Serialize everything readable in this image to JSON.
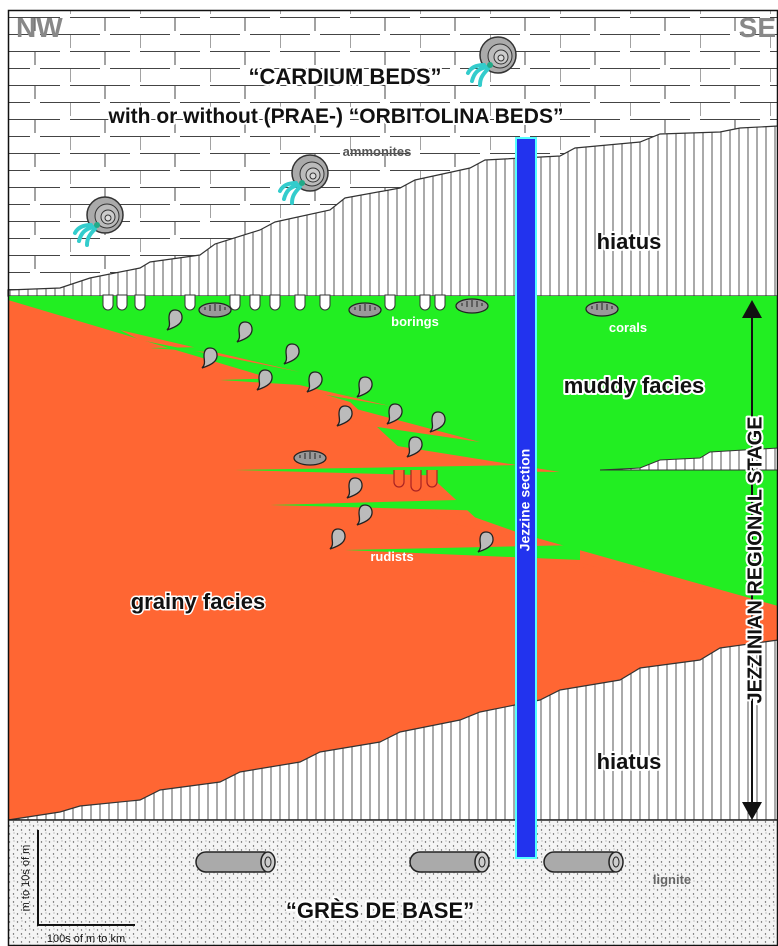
{
  "header": {
    "left": "NW",
    "right": "SE"
  },
  "upper_unit": {
    "title": "“CARDIUM BEDS”",
    "subtitle": "with or without (PRAE-) “ORBITOLINA BEDS”",
    "fossil": "ammonites"
  },
  "upper_hiatus": "hiatus",
  "middle_unit": {
    "muddy": "muddy facies",
    "grainy": "grainy facies",
    "borings": "borings",
    "corals": "corals",
    "rudists": "rudists"
  },
  "lower_hiatus": "hiatus",
  "base_unit": {
    "title": "“GRÈS DE BASE”",
    "fossil": "lignite"
  },
  "section": "Jezzine section",
  "stage": "JEZZINIAN REGIONAL STAGE",
  "scale": {
    "vertical": "m to 10s of m",
    "horizontal": "100s of m to km"
  }
}
